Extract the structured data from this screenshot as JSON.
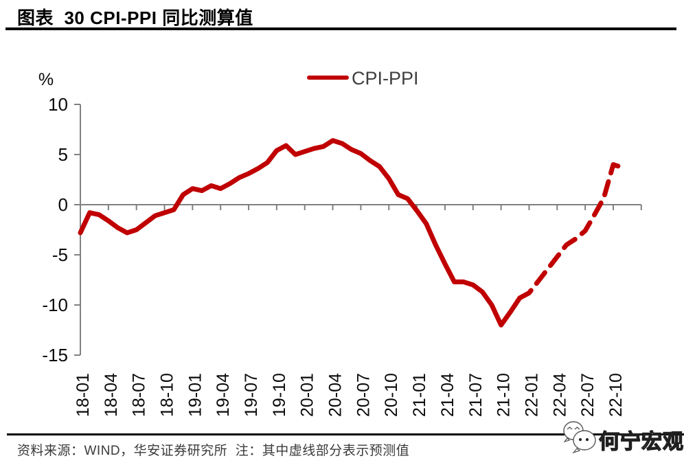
{
  "page": {
    "title": "图表  30 CPI-PPI 同比测算值",
    "footer_note": "资料来源：WIND，华安证券研究所  注：其中虚线部分表示预测值",
    "watermark_text": "何宁宏观",
    "watermark_icon": "wechat-bubbles-icon"
  },
  "chart_data": {
    "type": "line",
    "title": "CPI-PPI 同比测算值",
    "unit_label": "%",
    "xlabel": "",
    "ylabel": "%",
    "ylim": [
      -15,
      10
    ],
    "y_ticks": [
      10,
      5,
      0,
      -5,
      -10,
      -15
    ],
    "grid": "zero-line-only",
    "axis_color": "#808080",
    "legend": {
      "position": "top-center",
      "entries": [
        {
          "label": "CPI-PPI",
          "color": "#c00000"
        }
      ]
    },
    "x_tick_labels": [
      "18-01",
      "18-04",
      "18-07",
      "18-10",
      "19-01",
      "19-04",
      "19-07",
      "19-10",
      "20-01",
      "20-04",
      "20-07",
      "20-10",
      "21-01",
      "21-04",
      "21-07",
      "21-10",
      "22-01",
      "22-04",
      "22-07",
      "22-10"
    ],
    "x": [
      "18-01",
      "18-02",
      "18-03",
      "18-04",
      "18-05",
      "18-06",
      "18-07",
      "18-08",
      "18-09",
      "18-10",
      "18-11",
      "18-12",
      "19-01",
      "19-02",
      "19-03",
      "19-04",
      "19-05",
      "19-06",
      "19-07",
      "19-08",
      "19-09",
      "19-10",
      "19-11",
      "19-12",
      "20-01",
      "20-02",
      "20-03",
      "20-04",
      "20-05",
      "20-06",
      "20-07",
      "20-08",
      "20-09",
      "20-10",
      "20-11",
      "20-12",
      "21-01",
      "21-02",
      "21-03",
      "21-04",
      "21-05",
      "21-06",
      "21-07",
      "21-08",
      "21-09",
      "21-10",
      "21-11",
      "21-12",
      "22-01",
      "22-02",
      "22-03",
      "22-04",
      "22-05",
      "22-06",
      "22-07",
      "22-08",
      "22-09",
      "22-10",
      "22-11"
    ],
    "series": [
      {
        "name": "CPI-PPI",
        "color": "#c00000",
        "values": [
          -2.8,
          -0.8,
          -1.0,
          -1.6,
          -2.3,
          -2.8,
          -2.5,
          -1.8,
          -1.1,
          -0.8,
          -0.5,
          1.0,
          1.6,
          1.4,
          1.9,
          1.6,
          2.1,
          2.7,
          3.1,
          3.6,
          4.2,
          5.4,
          5.9,
          5.0,
          5.3,
          5.6,
          5.8,
          6.4,
          6.1,
          5.5,
          5.1,
          4.4,
          3.8,
          2.6,
          1.0,
          0.6,
          -0.6,
          -1.9,
          -4.0,
          -5.9,
          -7.7,
          -7.7,
          -8.0,
          -8.7,
          -10.0,
          -12.0,
          -10.7,
          -9.3,
          -8.8,
          -7.6,
          -6.4,
          -5.2,
          -4.0,
          -3.4,
          -2.6,
          -1.0,
          0.7,
          4.0,
          3.7
        ],
        "dashed_from_index": 47,
        "dashed_meaning": "虚线部分表示预测值"
      }
    ]
  }
}
